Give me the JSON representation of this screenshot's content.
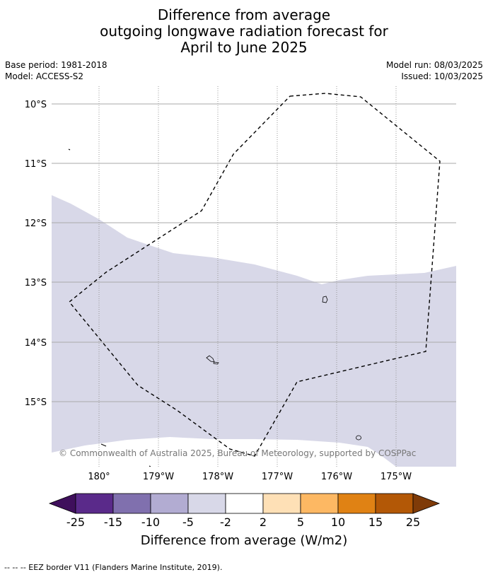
{
  "title": {
    "line1": "Difference from average",
    "line2": "outgoing longwave radiation forecast for",
    "line3": "April to June 2025"
  },
  "meta": {
    "base_period": "Base period: 1981-2018",
    "model": "Model: ACCESS-S2",
    "model_run": "Model run: 08/03/2025",
    "issued": "Issued: 10/03/2025"
  },
  "map": {
    "lat_labels": [
      "10°S",
      "11°S",
      "12°S",
      "13°S",
      "14°S",
      "15°S"
    ],
    "lon_labels": [
      "180°",
      "179°W",
      "178°W",
      "177°W",
      "176°W",
      "175°W"
    ],
    "copyright": "© Commonwealth of Australia 2025, Bureau of Meteorology, supported by COSPPac",
    "anomaly_fill_color": "#d8d8e8",
    "eez_line_color": "#000000"
  },
  "colorbar": {
    "label": "Difference from average (W/m2)",
    "ticks": [
      "-25",
      "-15",
      "-10",
      "-5",
      "-2",
      "2",
      "5",
      "10",
      "15",
      "25"
    ],
    "bins": [
      {
        "range": "<-25",
        "color": "#3f0f5c"
      },
      {
        "range": "-25 to -15",
        "color": "#5a2a8a"
      },
      {
        "range": "-15 to -10",
        "color": "#8070ae"
      },
      {
        "range": "-10 to -5",
        "color": "#b2acd2"
      },
      {
        "range": "-5 to -2",
        "color": "#d8d8e8"
      },
      {
        "range": "-2 to 2",
        "color": "#ffffff"
      },
      {
        "range": "2 to 5",
        "color": "#fee0b6"
      },
      {
        "range": "5 to 10",
        "color": "#fdb863"
      },
      {
        "range": "10 to 15",
        "color": "#e08214"
      },
      {
        "range": "15 to 25",
        "color": "#b35806"
      },
      {
        "range": ">25",
        "color": "#7f3b08"
      }
    ]
  },
  "footer": {
    "legend": "--  --  -- EEZ border V11 (Flanders Marine Institute, 2019)."
  }
}
